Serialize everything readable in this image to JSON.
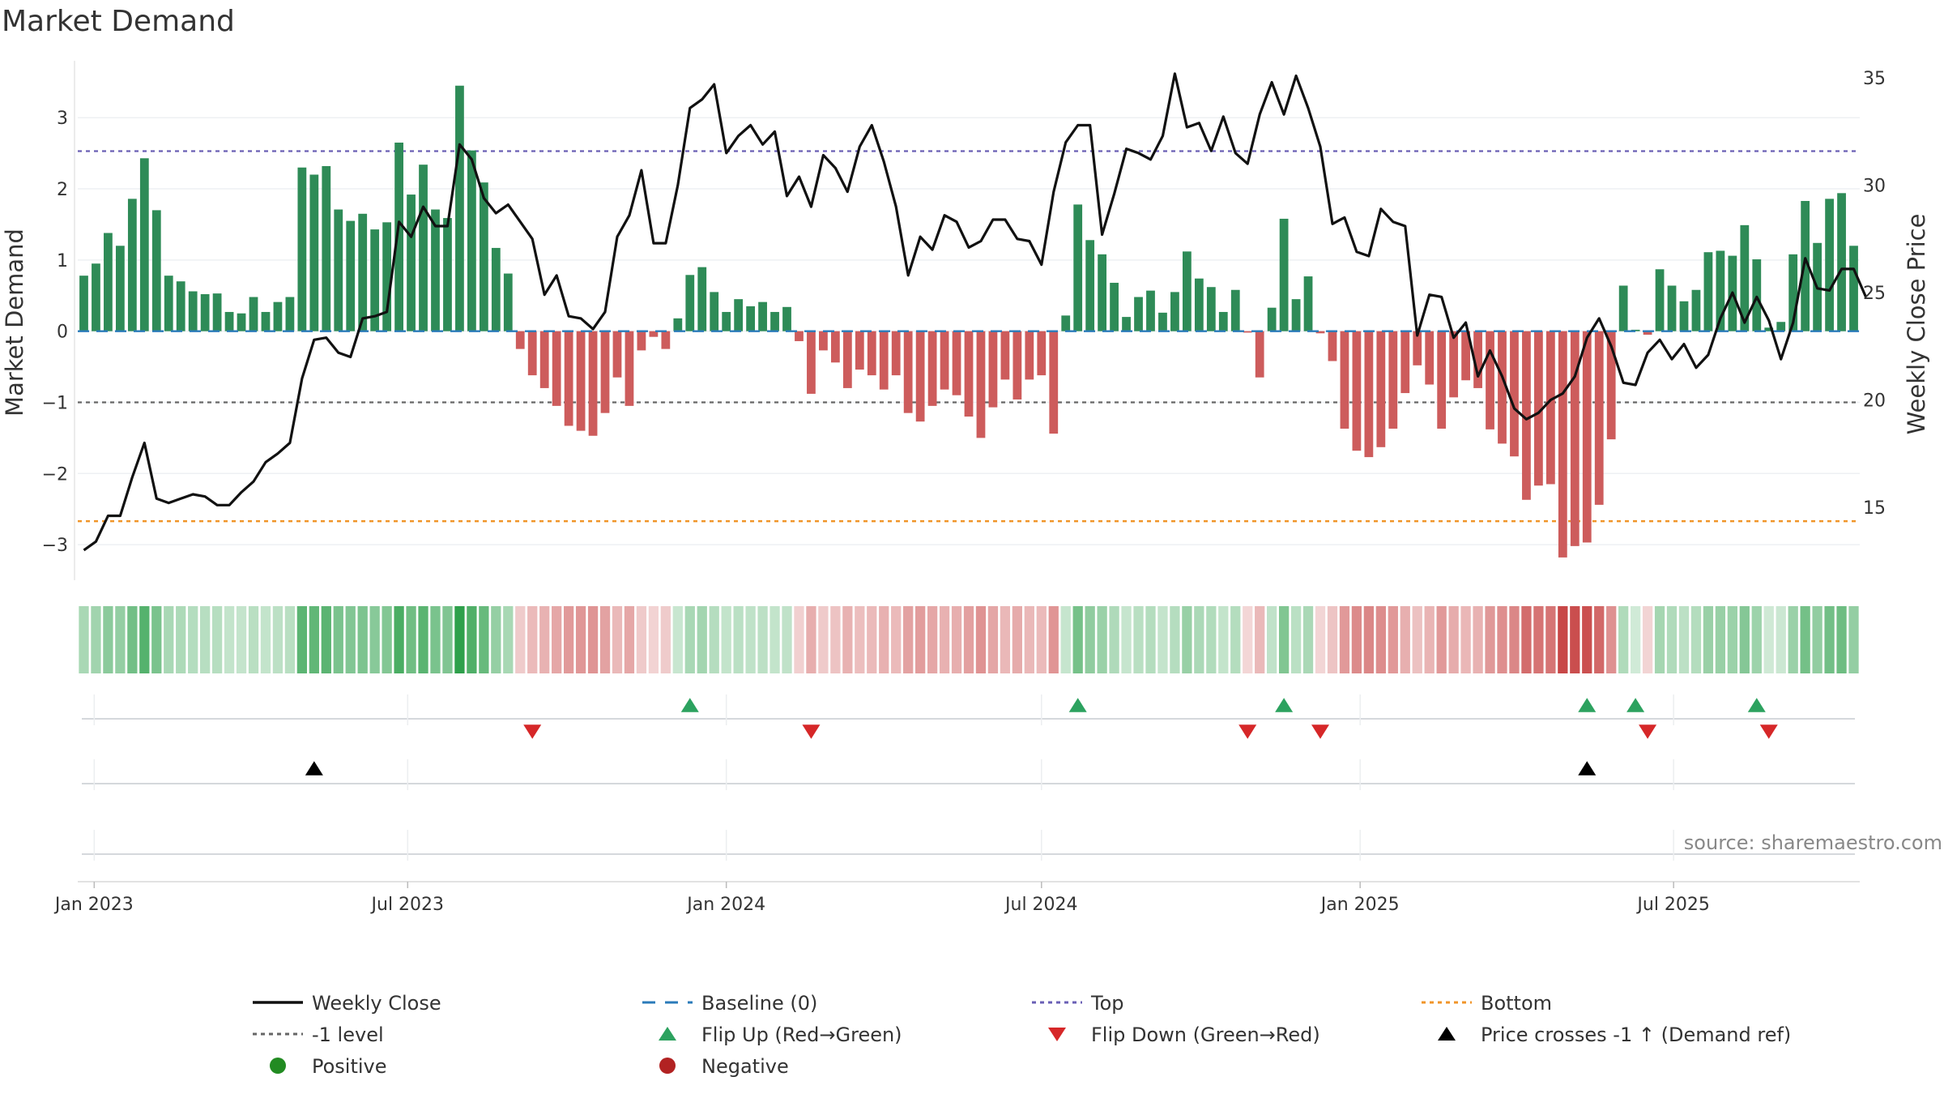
{
  "chart_data": {
    "type": "bar",
    "title": "Market Demand",
    "ylabel_left": "Market Demand",
    "ylabel_right": "Weekly Close Price",
    "source": "source: sharemaestro.com",
    "ylim_left": [
      -3.5,
      3.8
    ],
    "yticks_left": [
      3,
      2,
      1,
      0,
      -1,
      -2,
      -3
    ],
    "ytick_labels_left": [
      "3",
      "2",
      "1",
      "0",
      "−1",
      "−2",
      "−3"
    ],
    "ylim_right": [
      11.6,
      35.8
    ],
    "yticks_right": [
      35,
      30,
      25,
      20,
      15
    ],
    "ytick_labels_right": [
      "35",
      "30",
      "25",
      "20",
      "15"
    ],
    "top_level": 2.53,
    "bottom_level": -2.67,
    "minus1_level": -1,
    "start_date": "2022-12-26",
    "end_date": "2025-09-15",
    "x_ticks": [
      {
        "date": "2023-01-01",
        "label": "Jan 2023"
      },
      {
        "date": "2023-07-01",
        "label": "Jul 2023"
      },
      {
        "date": "2024-01-01",
        "label": "Jan 2024"
      },
      {
        "date": "2024-07-01",
        "label": "Jul 2024"
      },
      {
        "date": "2025-01-01",
        "label": "Jan 2025"
      },
      {
        "date": "2025-07-01",
        "label": "Jul 2025"
      }
    ],
    "demand": [
      0.78,
      0.95,
      1.38,
      1.2,
      1.86,
      2.43,
      1.7,
      0.78,
      0.7,
      0.56,
      0.52,
      0.53,
      0.27,
      0.25,
      0.48,
      0.27,
      0.41,
      0.48,
      2.3,
      2.2,
      2.32,
      1.71,
      1.55,
      1.65,
      1.43,
      1.53,
      2.65,
      1.92,
      2.34,
      1.71,
      1.59,
      3.45,
      2.54,
      2.09,
      1.17,
      0.81,
      -0.25,
      -0.62,
      -0.8,
      -1.05,
      -1.33,
      -1.4,
      -1.47,
      -1.15,
      -0.65,
      -1.05,
      -0.27,
      -0.08,
      -0.25,
      0.18,
      0.79,
      0.9,
      0.55,
      0.27,
      0.45,
      0.35,
      0.41,
      0.27,
      0.34,
      -0.14,
      -0.88,
      -0.27,
      -0.44,
      -0.8,
      -0.54,
      -0.62,
      -0.82,
      -0.62,
      -1.15,
      -1.27,
      -1.05,
      -0.82,
      -0.9,
      -1.2,
      -1.5,
      -1.07,
      -0.68,
      -0.96,
      -0.68,
      -0.62,
      -1.44,
      0.22,
      1.78,
      1.28,
      1.08,
      0.68,
      0.2,
      0.48,
      0.57,
      0.26,
      0.55,
      1.12,
      0.74,
      0.62,
      0.27,
      0.58,
      -0.02,
      -0.65,
      0.33,
      1.58,
      0.45,
      0.77,
      -0.03,
      -0.42,
      -1.37,
      -1.68,
      -1.77,
      -1.63,
      -1.37,
      -0.87,
      -0.48,
      -0.75,
      -1.37,
      -0.93,
      -0.69,
      -0.8,
      -1.38,
      -1.58,
      -1.76,
      -2.37,
      -2.17,
      -2.15,
      -3.18,
      -3.02,
      -2.97,
      -2.44,
      -1.52,
      0.64,
      0.02,
      -0.05,
      0.87,
      0.64,
      0.42,
      0.58,
      1.11,
      1.13,
      1.06,
      1.49,
      1.01,
      0.05,
      0.13,
      1.08,
      1.83,
      1.24,
      1.86,
      1.94,
      1.2
    ],
    "weekly_close": [
      13.0,
      13.4,
      14.6,
      14.6,
      16.4,
      18.0,
      15.4,
      15.2,
      15.4,
      15.6,
      15.5,
      15.1,
      15.1,
      15.7,
      16.2,
      17.1,
      17.5,
      18.0,
      21.0,
      22.8,
      22.9,
      22.2,
      22.0,
      23.8,
      23.9,
      24.1,
      28.3,
      27.6,
      29.0,
      28.1,
      28.1,
      31.9,
      31.2,
      29.4,
      28.7,
      29.1,
      28.3,
      27.5,
      24.9,
      25.8,
      23.9,
      23.8,
      23.3,
      24.1,
      27.6,
      28.6,
      30.7,
      27.3,
      27.3,
      30.0,
      33.6,
      34.0,
      34.7,
      31.5,
      32.3,
      32.8,
      31.9,
      32.5,
      29.5,
      30.4,
      29.0,
      31.4,
      30.8,
      29.7,
      31.8,
      32.8,
      31.1,
      29.0,
      25.8,
      27.6,
      27.0,
      28.6,
      28.3,
      27.1,
      27.4,
      28.4,
      28.4,
      27.5,
      27.4,
      26.3,
      29.7,
      32.0,
      32.8,
      32.8,
      27.7,
      29.6,
      31.7,
      31.5,
      31.2,
      32.3,
      35.2,
      32.7,
      32.9,
      31.6,
      33.2,
      31.5,
      31.0,
      33.3,
      34.8,
      33.3,
      35.1,
      33.6,
      31.8,
      28.2,
      28.5,
      26.9,
      26.7,
      28.9,
      28.3,
      28.1,
      23.0,
      24.9,
      24.8,
      22.9,
      23.6,
      21.1,
      22.3,
      21.1,
      19.6,
      19.1,
      19.4,
      20.0,
      20.3,
      21.1,
      22.9,
      23.8,
      22.5,
      20.8,
      20.7,
      22.2,
      22.8,
      21.9,
      22.6,
      21.5,
      22.1,
      23.8,
      25.0,
      23.6,
      24.8,
      23.7,
      21.9,
      23.6,
      26.6,
      25.2,
      25.1,
      26.1,
      26.1,
      24.8
    ],
    "flip_up_weeks": [
      50,
      82,
      99,
      124,
      128,
      138
    ],
    "flip_down_weeks": [
      37,
      60,
      96,
      102,
      129,
      139
    ],
    "price_cross_weeks": [
      19,
      124
    ],
    "legend": [
      {
        "label": "Weekly Close",
        "marker": "line",
        "color": "#111111"
      },
      {
        "label": "Baseline (0)",
        "marker": "dash",
        "color": "#2b7bba"
      },
      {
        "label": "Top",
        "marker": "dot",
        "color": "#6a5fb5"
      },
      {
        "label": "Bottom",
        "marker": "dot",
        "color": "#f0952a"
      },
      {
        "label": "-1 level",
        "marker": "dot",
        "color": "#666666"
      },
      {
        "label": "Flip Up (Red→Green)",
        "marker": "triangle-up",
        "color": "#2ca25f"
      },
      {
        "label": "Flip Down (Green→Red)",
        "marker": "triangle-down",
        "color": "#d62728"
      },
      {
        "label": "Price crosses -1 ↑ (Demand ref)",
        "marker": "triangle-up",
        "color": "#000000"
      },
      {
        "label": "Positive",
        "marker": "circle",
        "color": "#228b22"
      },
      {
        "label": "Negative",
        "marker": "circle",
        "color": "#b22222"
      }
    ],
    "colors": {
      "positive_bar": "#2e8b57",
      "negative_bar": "#cd5c5c",
      "price_line": "#111111",
      "baseline": "#2b7bba",
      "top_line": "#6a5fb5",
      "bottom_line": "#f0952a",
      "minus1_line": "#666666",
      "flip_up": "#2ca25f",
      "flip_down": "#d62728",
      "cross": "#000000"
    }
  }
}
